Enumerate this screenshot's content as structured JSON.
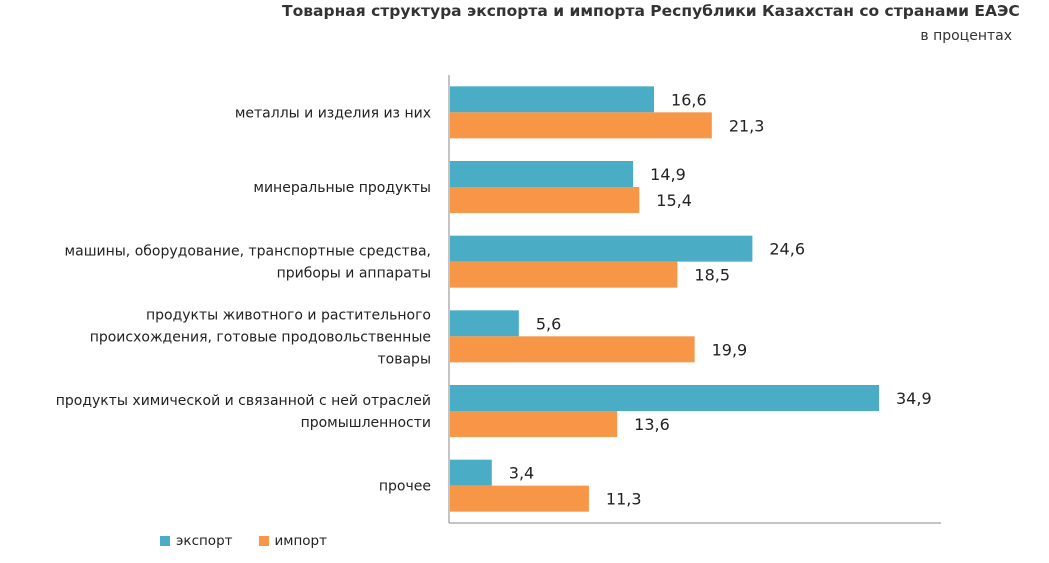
{
  "chart_data": {
    "type": "bar",
    "orientation": "horizontal",
    "title": "Товарная структура экспорта и импорта Республики Казахстан со странами ЕАЭС",
    "subtitle": "в процентах",
    "categories": [
      [
        "металлы и изделия из них"
      ],
      [
        "минеральные продукты"
      ],
      [
        "машины, оборудование, транспортные средства,",
        "приборы и аппараты"
      ],
      [
        "продукты животного и растительного",
        "происхождения, готовые продовольственные",
        "товары"
      ],
      [
        "продукты химической и связанной с ней отраслей",
        "промышленности"
      ],
      [
        "прочее"
      ]
    ],
    "series": [
      {
        "name": "экспорт",
        "color": "#4bacc6",
        "values": [
          16.6,
          14.9,
          24.6,
          5.6,
          34.9,
          3.4
        ],
        "labels": [
          "16,6",
          "14,9",
          "24,6",
          "5,6",
          "34,9",
          "3,4"
        ]
      },
      {
        "name": "импорт",
        "color": "#f79646",
        "values": [
          21.3,
          15.4,
          18.5,
          19.9,
          13.6,
          11.3
        ],
        "labels": [
          "21,3",
          "15,4",
          "18,5",
          "19,9",
          "13,6",
          "11,3"
        ]
      }
    ],
    "xlim": [
      0,
      40
    ],
    "grid": false,
    "legend_position": "bottom-left"
  }
}
